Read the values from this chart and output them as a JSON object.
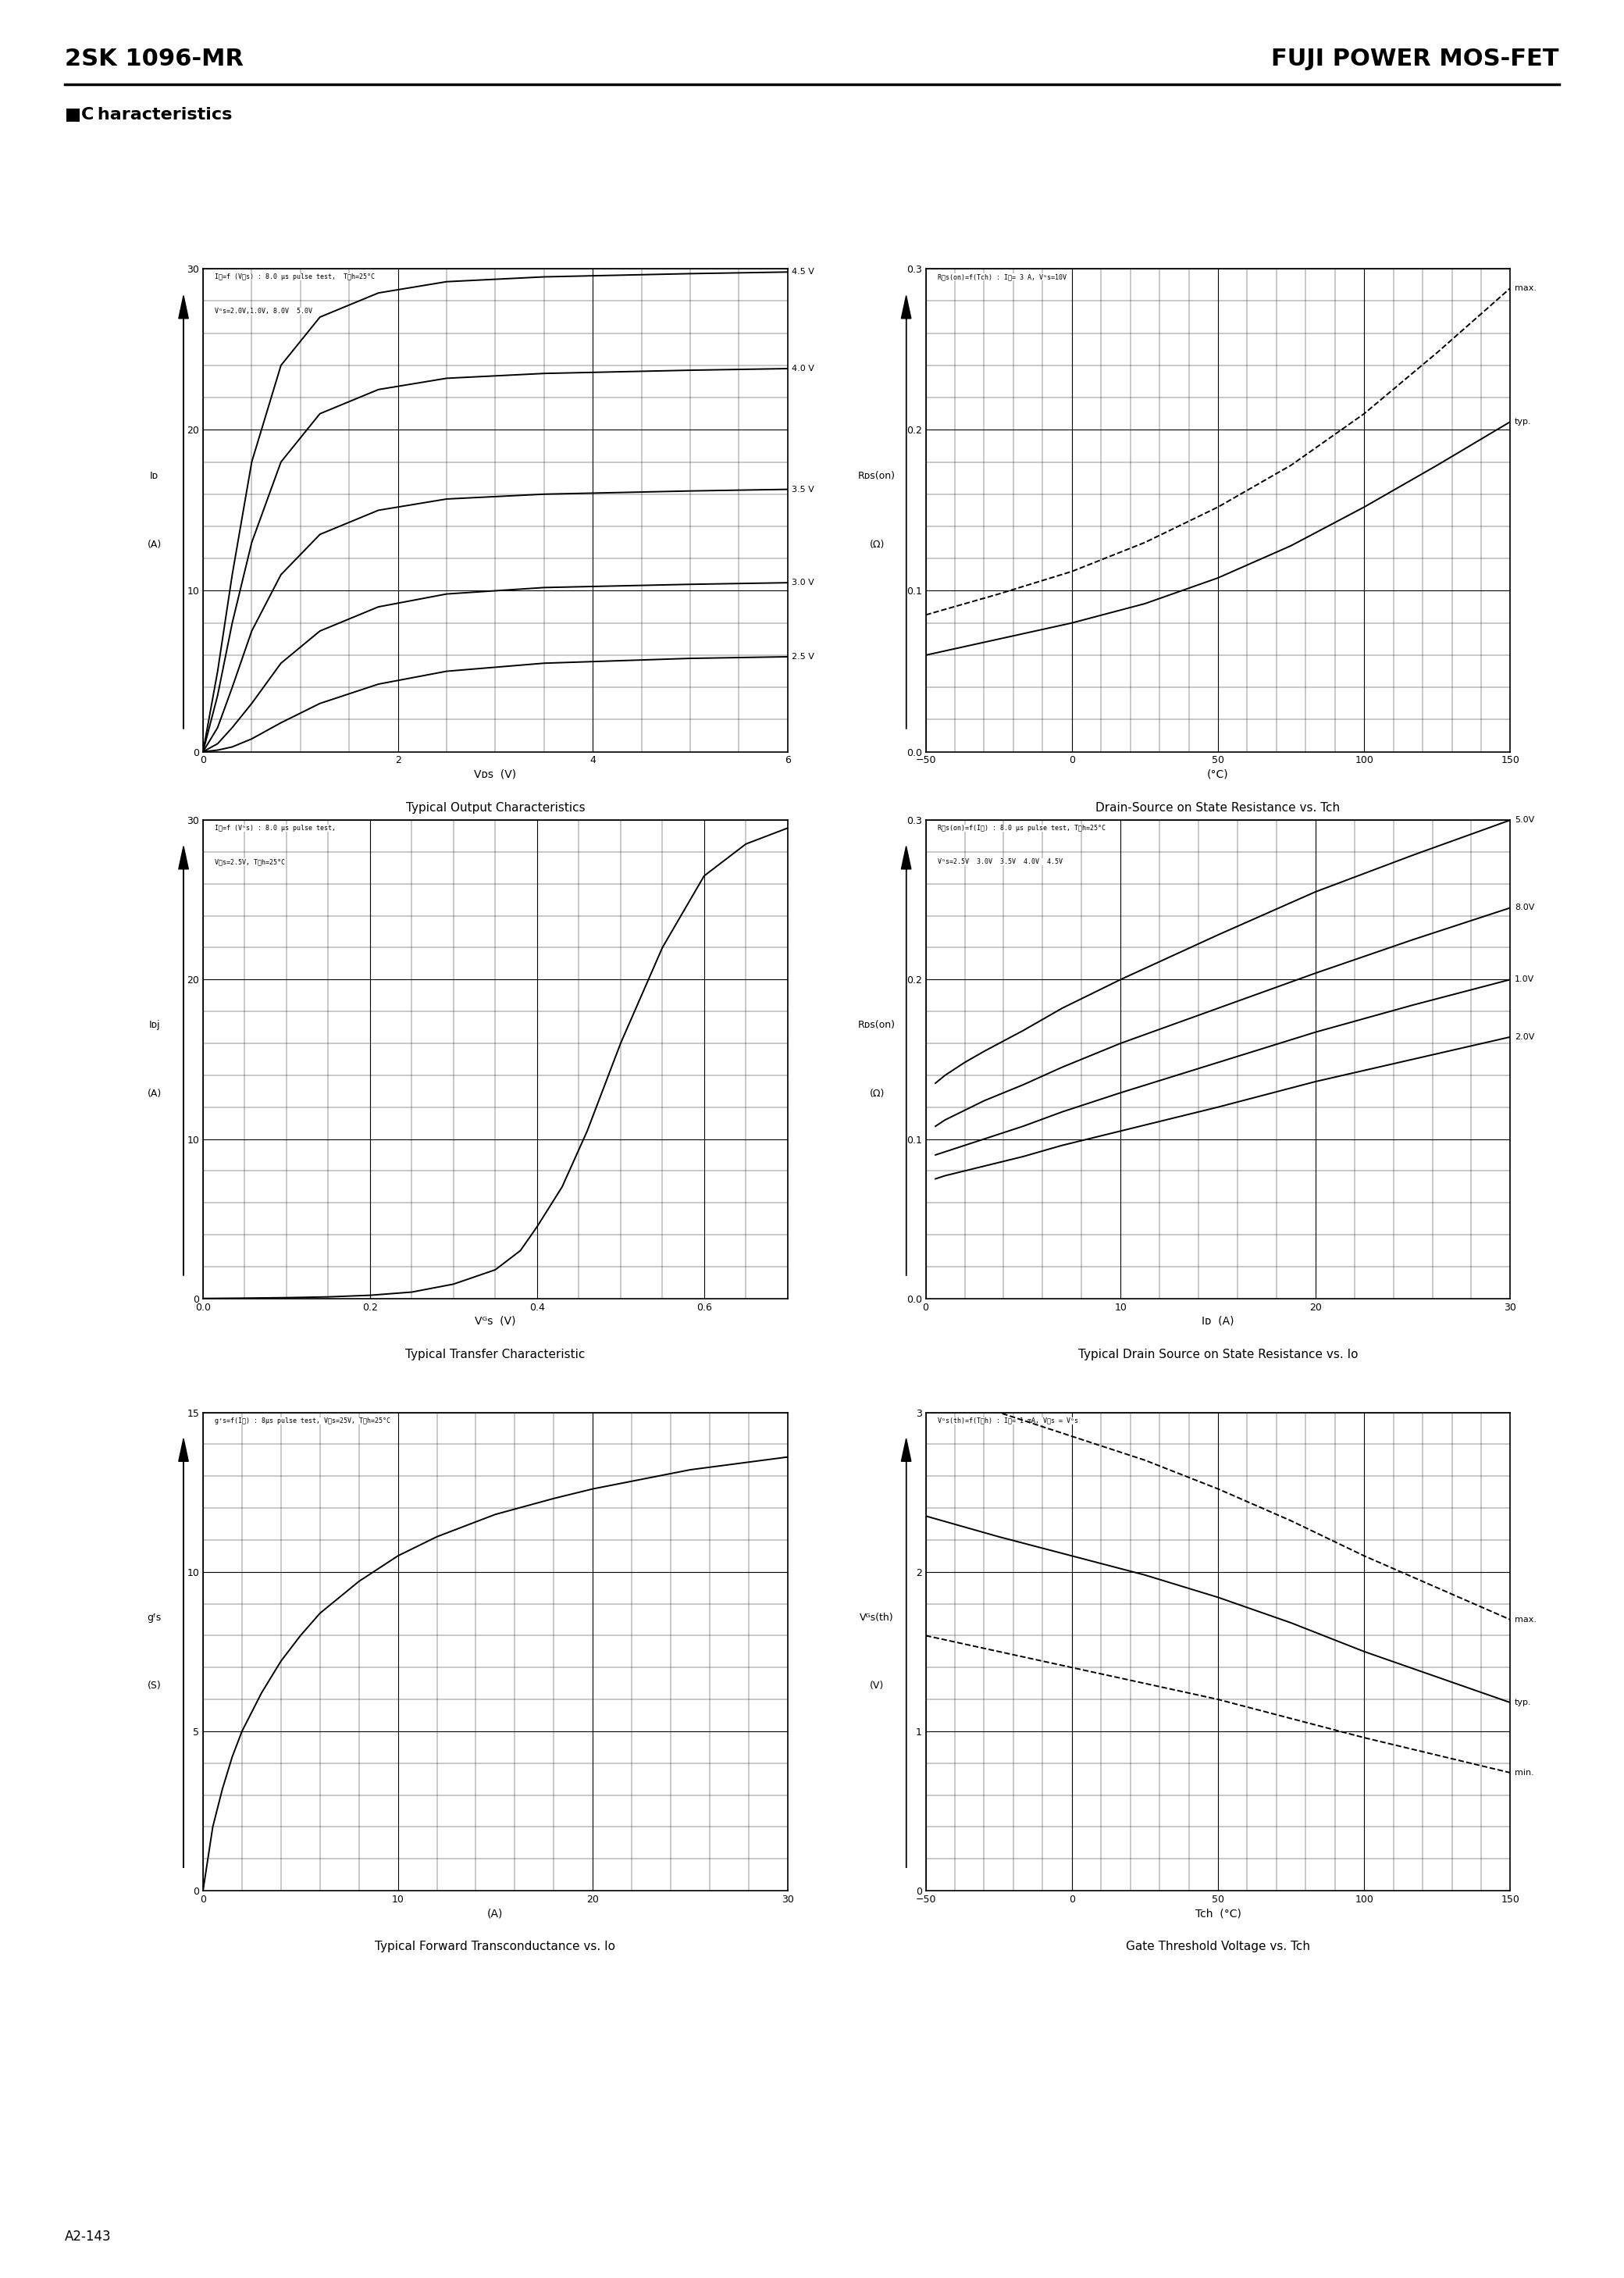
{
  "page_title_left": "2SK 1096-MR",
  "page_title_right": "FUJI POWER MOS-FET",
  "section_title": "■C haracteristics",
  "page_number": "A2-143",
  "bg_color": "#ffffff",
  "text_color": "#000000",
  "plots": [
    {
      "id": "plot1",
      "title": "Typical Output Characteristics",
      "xlabel": "Vᴅs  (V)",
      "ylabel_line1": "Iᴅ",
      "ylabel_line2": "(A)",
      "xlim": [
        0,
        6
      ],
      "ylim": [
        0,
        30
      ],
      "xticks": [
        0,
        2,
        4,
        6
      ],
      "yticks": [
        0,
        10,
        20,
        30
      ],
      "annot1": "Iᴅ=f (Vᴅs) : 8.0 μs pulse test,  Tᴄh=25°C",
      "annot2": "Vᴳs=2.0V,1.0V, 8.0V  5.0V",
      "curves": [
        {
          "label": "4.5 V",
          "label_pos": "right",
          "x": [
            0,
            0.15,
            0.3,
            0.5,
            0.8,
            1.2,
            1.8,
            2.5,
            3.5,
            5.0,
            6.0
          ],
          "y": [
            0,
            5,
            11,
            18,
            24,
            27,
            28.5,
            29.2,
            29.5,
            29.7,
            29.8
          ]
        },
        {
          "label": "4.0 V",
          "label_pos": "right",
          "x": [
            0,
            0.15,
            0.3,
            0.5,
            0.8,
            1.2,
            1.8,
            2.5,
            3.5,
            5.0,
            6.0
          ],
          "y": [
            0,
            3.5,
            8,
            13,
            18,
            21,
            22.5,
            23.2,
            23.5,
            23.7,
            23.8
          ]
        },
        {
          "label": "3.5 V",
          "label_pos": "right",
          "x": [
            0,
            0.15,
            0.3,
            0.5,
            0.8,
            1.2,
            1.8,
            2.5,
            3.5,
            5.0,
            6.0
          ],
          "y": [
            0,
            1.5,
            4,
            7.5,
            11,
            13.5,
            15.0,
            15.7,
            16.0,
            16.2,
            16.3
          ]
        },
        {
          "label": "3.0 V",
          "label_pos": "right",
          "x": [
            0,
            0.15,
            0.3,
            0.5,
            0.8,
            1.2,
            1.8,
            2.5,
            3.5,
            5.0,
            6.0
          ],
          "y": [
            0,
            0.5,
            1.5,
            3,
            5.5,
            7.5,
            9.0,
            9.8,
            10.2,
            10.4,
            10.5
          ]
        },
        {
          "label": "2.5 V",
          "label_pos": "right",
          "x": [
            0,
            0.15,
            0.3,
            0.5,
            0.8,
            1.2,
            1.8,
            2.5,
            3.5,
            5.0,
            6.0
          ],
          "y": [
            0,
            0.1,
            0.3,
            0.8,
            1.8,
            3.0,
            4.2,
            5.0,
            5.5,
            5.8,
            5.9
          ]
        }
      ]
    },
    {
      "id": "plot2",
      "title": "Drain-Source on State Resistance vs. Tch",
      "xlabel": "(°C)",
      "ylabel_line1": "Rᴅs(on)",
      "ylabel_line2": "(Ω)",
      "xlim": [
        -50,
        150
      ],
      "ylim": [
        0,
        0.3
      ],
      "xticks": [
        -50,
        0,
        50,
        100,
        150
      ],
      "yticks": [
        0,
        0.1,
        0.2,
        0.3
      ],
      "annot1": "Rᴅs(on)=f(Tch) : Iᴅ= 3 A, Vᴳs=10V",
      "annot2": "",
      "curves": [
        {
          "label": "max.",
          "label_pos": "right",
          "x": [
            -50,
            -25,
            0,
            25,
            50,
            75,
            100,
            125,
            150
          ],
          "y": [
            0.085,
            0.098,
            0.112,
            0.13,
            0.152,
            0.178,
            0.21,
            0.248,
            0.288
          ],
          "style": "dashed"
        },
        {
          "label": "typ.",
          "label_pos": "right",
          "x": [
            -50,
            -25,
            0,
            25,
            50,
            75,
            100,
            125,
            150
          ],
          "y": [
            0.06,
            0.07,
            0.08,
            0.092,
            0.108,
            0.128,
            0.152,
            0.178,
            0.205
          ],
          "style": "solid"
        }
      ]
    },
    {
      "id": "plot3",
      "title": "Typical Transfer Characteristic",
      "xlabel": "Vᴳs  (V)",
      "ylabel_line1": "Iᴅϳ",
      "ylabel_line2": "(A)",
      "xlim": [
        0,
        0.7
      ],
      "ylim": [
        0,
        30
      ],
      "xticks": [
        0,
        0.2,
        0.4,
        0.6
      ],
      "yticks": [
        0,
        10,
        20,
        30
      ],
      "annot1": "Iᴅ=f (Vᴳs) : 8.0 μs pulse test,",
      "annot2": "Vᴅs=2.5V, Tᴄh=25°C",
      "curves": [
        {
          "label": "",
          "label_pos": "none",
          "x": [
            0,
            0.05,
            0.1,
            0.15,
            0.2,
            0.25,
            0.3,
            0.35,
            0.38,
            0.4,
            0.43,
            0.46,
            0.5,
            0.55,
            0.6,
            0.65,
            0.7
          ],
          "y": [
            0,
            0.02,
            0.05,
            0.1,
            0.2,
            0.4,
            0.9,
            1.8,
            3.0,
            4.5,
            7.0,
            10.5,
            16.0,
            22.0,
            26.5,
            28.5,
            29.5
          ]
        }
      ]
    },
    {
      "id": "plot4",
      "title": "Typical Drain Source on State Resistance vs. Io",
      "xlabel": "Iᴅ  (A)",
      "ylabel_line1": "Rᴅs(on)",
      "ylabel_line2": "(Ω)",
      "xlim": [
        0,
        30
      ],
      "ylim": [
        0,
        0.3
      ],
      "xticks": [
        0,
        10,
        20,
        30
      ],
      "yticks": [
        0,
        0.1,
        0.2,
        0.3
      ],
      "annot1": "Rᴅs(on)=f(Iᴅ) : 8.0 μs pulse test, Tᴄh=25°C",
      "annot2": "Vᴳs=2.5V  3.0V  3.5V  4.0V  4.5V",
      "curves": [
        {
          "label": "5.0V",
          "label_pos": "right",
          "x": [
            0.5,
            1,
            2,
            3,
            5,
            7,
            10,
            15,
            20,
            25,
            30
          ],
          "y": [
            0.135,
            0.14,
            0.148,
            0.155,
            0.168,
            0.182,
            0.2,
            0.228,
            0.255,
            0.278,
            0.3
          ]
        },
        {
          "label": "8.0V",
          "label_pos": "right",
          "x": [
            0.5,
            1,
            2,
            3,
            5,
            7,
            10,
            15,
            20,
            25,
            30
          ],
          "y": [
            0.108,
            0.112,
            0.118,
            0.124,
            0.134,
            0.145,
            0.16,
            0.182,
            0.204,
            0.225,
            0.245
          ]
        },
        {
          "label": "1.0V",
          "label_pos": "right",
          "x": [
            0.5,
            1,
            2,
            3,
            5,
            7,
            10,
            15,
            20,
            25,
            30
          ],
          "y": [
            0.09,
            0.092,
            0.096,
            0.1,
            0.108,
            0.117,
            0.129,
            0.148,
            0.167,
            0.184,
            0.2
          ]
        },
        {
          "label": "2.0V",
          "label_pos": "right",
          "x": [
            0.5,
            1,
            2,
            3,
            5,
            7,
            10,
            15,
            20,
            25,
            30
          ],
          "y": [
            0.075,
            0.077,
            0.08,
            0.083,
            0.089,
            0.096,
            0.105,
            0.12,
            0.136,
            0.15,
            0.164
          ]
        }
      ]
    },
    {
      "id": "plot5",
      "title": "Typical Forward Transconductance vs. Io",
      "xlabel": "(A)",
      "ylabel_line1": "gᶠs",
      "ylabel_line2": "(S)",
      "xlim": [
        0,
        30
      ],
      "ylim": [
        0,
        15
      ],
      "xticks": [
        0,
        10,
        20,
        30
      ],
      "yticks": [
        0,
        5,
        10,
        15
      ],
      "annot1": "gᶠs=f(Iᴅ) : 8μs pulse test, Vᴅs=25V, Tᴄh=25°C",
      "annot2": "",
      "curves": [
        {
          "label": "",
          "label_pos": "none",
          "x": [
            0,
            0.5,
            1,
            1.5,
            2,
            3,
            4,
            5,
            6,
            7,
            8,
            10,
            12,
            15,
            18,
            20,
            25,
            30
          ],
          "y": [
            0,
            2.0,
            3.2,
            4.2,
            5.0,
            6.2,
            7.2,
            8.0,
            8.7,
            9.2,
            9.7,
            10.5,
            11.1,
            11.8,
            12.3,
            12.6,
            13.2,
            13.6
          ]
        }
      ]
    },
    {
      "id": "plot6",
      "title": "Gate Threshold Voltage vs. Tch",
      "xlabel": "Tch  (°C)",
      "ylabel_line1": "Vᴳs(th)",
      "ylabel_line2": "(V)",
      "xlim": [
        -50,
        150
      ],
      "ylim": [
        0,
        3.0
      ],
      "xticks": [
        -50,
        0,
        50,
        100,
        150
      ],
      "yticks": [
        0,
        1.0,
        2.0,
        3.0
      ],
      "annot1": "Vᴳs(th)=f(Tᴄh) : Iᴅ= 1 mA, Vᴅs = Vᴳs",
      "annot2": "",
      "curves": [
        {
          "label": "max.",
          "label_pos": "right",
          "x": [
            -50,
            -25,
            0,
            25,
            50,
            75,
            100,
            125,
            150
          ],
          "y": [
            3.15,
            3.0,
            2.85,
            2.7,
            2.52,
            2.32,
            2.1,
            1.9,
            1.7
          ],
          "style": "dashed"
        },
        {
          "label": "typ.",
          "label_pos": "right",
          "x": [
            -50,
            -25,
            0,
            25,
            50,
            75,
            100,
            125,
            150
          ],
          "y": [
            2.35,
            2.22,
            2.1,
            1.98,
            1.84,
            1.68,
            1.5,
            1.34,
            1.18
          ],
          "style": "solid"
        },
        {
          "label": "min.",
          "label_pos": "right",
          "x": [
            -50,
            -25,
            0,
            25,
            50,
            75,
            100,
            125,
            150
          ],
          "y": [
            1.6,
            1.5,
            1.4,
            1.3,
            1.2,
            1.08,
            0.96,
            0.85,
            0.74
          ],
          "style": "dashed"
        }
      ]
    }
  ]
}
